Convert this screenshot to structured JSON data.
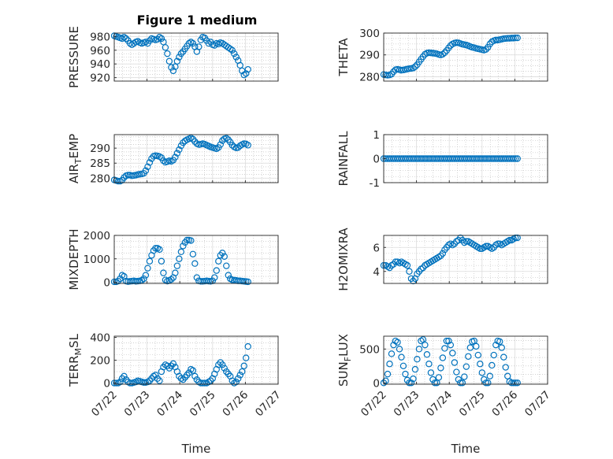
{
  "figure": {
    "title": "Figure 1 medium"
  },
  "colors": {
    "marker": "#0072BD",
    "grid": "#b8b8b8",
    "axis": "#262626"
  },
  "chart_data": [
    {
      "type": "scatter",
      "id": "pressure",
      "ylabel": "PRESSURE",
      "ylabel_sub": null,
      "ylim": [
        915,
        985
      ],
      "yticks": [
        920,
        940,
        960,
        980
      ],
      "xlim": [
        0,
        5
      ],
      "xticks": [
        0,
        1,
        2,
        3,
        4,
        5
      ],
      "xticklabels": [
        "07/22",
        "07/23",
        "07/24",
        "07/25",
        "07/26",
        "07/27"
      ],
      "show_xticklabels": false,
      "xlabel": "",
      "x": [
        0.0,
        0.06,
        0.12,
        0.18,
        0.24,
        0.3,
        0.36,
        0.42,
        0.48,
        0.54,
        0.6,
        0.66,
        0.72,
        0.78,
        0.84,
        0.9,
        0.96,
        1.02,
        1.08,
        1.14,
        1.2,
        1.26,
        1.32,
        1.38,
        1.44,
        1.5,
        1.56,
        1.62,
        1.68,
        1.74,
        1.8,
        1.86,
        1.92,
        1.98,
        2.04,
        2.1,
        2.16,
        2.22,
        2.28,
        2.34,
        2.4,
        2.46,
        2.52,
        2.58,
        2.64,
        2.7,
        2.76,
        2.82,
        2.88,
        2.94,
        3.0,
        3.06,
        3.12,
        3.18,
        3.24,
        3.3,
        3.36,
        3.42,
        3.48,
        3.54,
        3.6,
        3.66,
        3.72,
        3.78,
        3.84,
        3.9,
        3.96,
        4.02,
        4.08
      ],
      "y": [
        981,
        980,
        979,
        978,
        977,
        979,
        977,
        974,
        970,
        968,
        970,
        972,
        973,
        971,
        970,
        971,
        972,
        970,
        974,
        977,
        976,
        975,
        976,
        979,
        977,
        972,
        964,
        955,
        944,
        935,
        930,
        936,
        944,
        950,
        955,
        958,
        962,
        966,
        970,
        972,
        970,
        965,
        958,
        965,
        975,
        979,
        978,
        974,
        970,
        972,
        968,
        967,
        970,
        969,
        971,
        970,
        968,
        966,
        964,
        962,
        960,
        955,
        950,
        945,
        938,
        930,
        924,
        926,
        932
      ]
    },
    {
      "type": "scatter",
      "id": "theta",
      "ylabel": "THETA",
      "ylabel_sub": null,
      "ylim": [
        278,
        300
      ],
      "yticks": [
        280,
        290,
        300
      ],
      "xlim": [
        0,
        5
      ],
      "xticks": [
        0,
        1,
        2,
        3,
        4,
        5
      ],
      "xticklabels": [
        "07/22",
        "07/23",
        "07/24",
        "07/25",
        "07/26",
        "07/27"
      ],
      "show_xticklabels": false,
      "xlabel": "",
      "x": [
        0.0,
        0.06,
        0.12,
        0.18,
        0.24,
        0.3,
        0.36,
        0.42,
        0.48,
        0.54,
        0.6,
        0.66,
        0.72,
        0.78,
        0.84,
        0.9,
        0.96,
        1.02,
        1.08,
        1.14,
        1.2,
        1.26,
        1.32,
        1.38,
        1.44,
        1.5,
        1.56,
        1.62,
        1.68,
        1.74,
        1.8,
        1.86,
        1.92,
        1.98,
        2.04,
        2.1,
        2.16,
        2.22,
        2.28,
        2.34,
        2.4,
        2.46,
        2.52,
        2.58,
        2.64,
        2.7,
        2.76,
        2.82,
        2.88,
        2.94,
        3.0,
        3.06,
        3.12,
        3.18,
        3.24,
        3.3,
        3.36,
        3.42,
        3.48,
        3.54,
        3.6,
        3.66,
        3.72,
        3.78,
        3.84,
        3.9,
        3.96,
        4.02,
        4.08
      ],
      "y": [
        281,
        280.8,
        280.7,
        280.8,
        281.2,
        282.3,
        283.2,
        283.4,
        283.2,
        283.0,
        283.1,
        283.3,
        283.5,
        283.7,
        283.8,
        284.0,
        284.6,
        285.5,
        286.8,
        288.0,
        289.2,
        290.3,
        290.8,
        291.0,
        290.9,
        290.8,
        290.7,
        290.5,
        290.2,
        290.0,
        290.3,
        291.0,
        292.0,
        293.2,
        294.3,
        295.0,
        295.4,
        295.6,
        295.5,
        295.2,
        294.9,
        294.7,
        294.5,
        294.2,
        293.8,
        293.5,
        293.3,
        293.0,
        292.8,
        292.6,
        292.4,
        292.2,
        292.5,
        293.5,
        295.0,
        296.0,
        296.5,
        296.8,
        296.8,
        297.0,
        297.2,
        297.4,
        297.5,
        297.6,
        297.6,
        297.7,
        297.7,
        297.8,
        297.8
      ]
    },
    {
      "type": "scatter",
      "id": "air_temp",
      "ylabel": "AIR",
      "ylabel_sub": "T",
      "ylabel_tail": "EMP",
      "ylim": [
        278.5,
        294.5
      ],
      "yticks": [
        280,
        285,
        290
      ],
      "xlim": [
        0,
        5
      ],
      "xticks": [
        0,
        1,
        2,
        3,
        4,
        5
      ],
      "xticklabels": [
        "07/22",
        "07/23",
        "07/24",
        "07/25",
        "07/26",
        "07/27"
      ],
      "show_xticklabels": false,
      "xlabel": "",
      "x": [
        0.0,
        0.06,
        0.12,
        0.18,
        0.24,
        0.3,
        0.36,
        0.42,
        0.48,
        0.54,
        0.6,
        0.66,
        0.72,
        0.78,
        0.84,
        0.9,
        0.96,
        1.02,
        1.08,
        1.14,
        1.2,
        1.26,
        1.32,
        1.38,
        1.44,
        1.5,
        1.56,
        1.62,
        1.68,
        1.74,
        1.8,
        1.86,
        1.92,
        1.98,
        2.04,
        2.1,
        2.16,
        2.22,
        2.28,
        2.34,
        2.4,
        2.46,
        2.52,
        2.58,
        2.64,
        2.7,
        2.76,
        2.82,
        2.88,
        2.94,
        3.0,
        3.06,
        3.12,
        3.18,
        3.24,
        3.3,
        3.36,
        3.42,
        3.48,
        3.54,
        3.6,
        3.66,
        3.72,
        3.78,
        3.84,
        3.9,
        3.96,
        4.02,
        4.08
      ],
      "y": [
        279.4,
        279.2,
        279.0,
        279.0,
        279.3,
        280.2,
        280.8,
        281.0,
        281.0,
        280.8,
        280.9,
        281.0,
        281.2,
        281.3,
        281.4,
        281.6,
        282.5,
        283.8,
        285.2,
        286.5,
        287.3,
        287.5,
        287.4,
        287.2,
        286.8,
        285.8,
        285.3,
        285.5,
        285.8,
        285.6,
        286.0,
        287.0,
        288.3,
        289.5,
        290.8,
        291.8,
        292.4,
        292.8,
        293.1,
        293.4,
        293.0,
        292.2,
        291.5,
        291.2,
        291.3,
        291.5,
        291.3,
        291.0,
        290.7,
        290.4,
        290.2,
        290.0,
        289.8,
        290.2,
        291.2,
        292.5,
        293.1,
        293.3,
        292.8,
        292.0,
        291.0,
        290.4,
        290.1,
        290.2,
        290.8,
        291.2,
        291.5,
        291.4,
        291.0
      ]
    },
    {
      "type": "scatter",
      "id": "rainfall",
      "ylabel": "RAINFALL",
      "ylabel_sub": null,
      "ylim": [
        -1,
        1
      ],
      "yticks": [
        -1,
        0,
        1
      ],
      "xlim": [
        0,
        5
      ],
      "xticks": [
        0,
        1,
        2,
        3,
        4,
        5
      ],
      "xticklabels": [
        "07/22",
        "07/23",
        "07/24",
        "07/25",
        "07/26",
        "07/27"
      ],
      "show_xticklabels": false,
      "xlabel": "",
      "x": [
        0.0,
        0.06,
        0.12,
        0.18,
        0.24,
        0.3,
        0.36,
        0.42,
        0.48,
        0.54,
        0.6,
        0.66,
        0.72,
        0.78,
        0.84,
        0.9,
        0.96,
        1.02,
        1.08,
        1.14,
        1.2,
        1.26,
        1.32,
        1.38,
        1.44,
        1.5,
        1.56,
        1.62,
        1.68,
        1.74,
        1.8,
        1.86,
        1.92,
        1.98,
        2.04,
        2.1,
        2.16,
        2.22,
        2.28,
        2.34,
        2.4,
        2.46,
        2.52,
        2.58,
        2.64,
        2.7,
        2.76,
        2.82,
        2.88,
        2.94,
        3.0,
        3.06,
        3.12,
        3.18,
        3.24,
        3.3,
        3.36,
        3.42,
        3.48,
        3.54,
        3.6,
        3.66,
        3.72,
        3.78,
        3.84,
        3.9,
        3.96,
        4.02,
        4.08
      ],
      "y": [
        0,
        0,
        0,
        0,
        0,
        0,
        0,
        0,
        0,
        0,
        0,
        0,
        0,
        0,
        0,
        0,
        0,
        0,
        0,
        0,
        0,
        0,
        0,
        0,
        0,
        0,
        0,
        0,
        0,
        0,
        0,
        0,
        0,
        0,
        0,
        0,
        0,
        0,
        0,
        0,
        0,
        0,
        0,
        0,
        0,
        0,
        0,
        0,
        0,
        0,
        0,
        0,
        0,
        0,
        0,
        0,
        0,
        0,
        0,
        0,
        0,
        0,
        0,
        0,
        0,
        0,
        0,
        0,
        0
      ]
    },
    {
      "type": "scatter",
      "id": "mixdepth",
      "ylabel": "MIXDEPTH",
      "ylabel_sub": null,
      "ylim": [
        -50,
        2000
      ],
      "yticks": [
        0,
        1000,
        2000
      ],
      "xlim": [
        0,
        5
      ],
      "xticks": [
        0,
        1,
        2,
        3,
        4,
        5
      ],
      "xticklabels": [
        "07/22",
        "07/23",
        "07/24",
        "07/25",
        "07/26",
        "07/27"
      ],
      "show_xticklabels": false,
      "xlabel": "",
      "x": [
        0.0,
        0.06,
        0.12,
        0.18,
        0.24,
        0.3,
        0.36,
        0.42,
        0.48,
        0.54,
        0.6,
        0.66,
        0.72,
        0.78,
        0.84,
        0.9,
        0.96,
        1.02,
        1.08,
        1.14,
        1.2,
        1.26,
        1.32,
        1.38,
        1.44,
        1.5,
        1.56,
        1.62,
        1.68,
        1.74,
        1.8,
        1.86,
        1.92,
        1.98,
        2.04,
        2.1,
        2.16,
        2.22,
        2.28,
        2.34,
        2.4,
        2.46,
        2.52,
        2.58,
        2.64,
        2.7,
        2.76,
        2.82,
        2.88,
        2.94,
        3.0,
        3.06,
        3.12,
        3.18,
        3.24,
        3.3,
        3.36,
        3.42,
        3.48,
        3.54,
        3.6,
        3.66,
        3.72,
        3.78,
        3.84,
        3.9,
        3.96,
        4.02,
        4.08
      ],
      "y": [
        20,
        20,
        50,
        150,
        300,
        250,
        50,
        30,
        40,
        50,
        60,
        40,
        50,
        60,
        80,
        150,
        300,
        600,
        900,
        1150,
        1350,
        1450,
        1450,
        1400,
        900,
        400,
        100,
        50,
        80,
        120,
        200,
        400,
        700,
        1000,
        1300,
        1550,
        1700,
        1800,
        1800,
        1780,
        1200,
        800,
        200,
        60,
        40,
        40,
        50,
        60,
        50,
        40,
        60,
        200,
        500,
        900,
        1150,
        1250,
        1100,
        700,
        300,
        150,
        100,
        90,
        80,
        60,
        60,
        50,
        40,
        30,
        20
      ]
    },
    {
      "type": "scatter",
      "id": "h2omixra",
      "ylabel": "H2OMIXRA",
      "ylabel_sub": null,
      "ylim": [
        3,
        7
      ],
      "yticks": [
        4,
        6
      ],
      "xlim": [
        0,
        5
      ],
      "xticks": [
        0,
        1,
        2,
        3,
        4,
        5
      ],
      "xticklabels": [
        "07/22",
        "07/23",
        "07/24",
        "07/25",
        "07/26",
        "07/27"
      ],
      "show_xticklabels": false,
      "xlabel": "",
      "x": [
        0.0,
        0.06,
        0.12,
        0.18,
        0.24,
        0.3,
        0.36,
        0.42,
        0.48,
        0.54,
        0.6,
        0.66,
        0.72,
        0.78,
        0.84,
        0.9,
        0.96,
        1.02,
        1.08,
        1.14,
        1.2,
        1.26,
        1.32,
        1.38,
        1.44,
        1.5,
        1.56,
        1.62,
        1.68,
        1.74,
        1.8,
        1.86,
        1.92,
        1.98,
        2.04,
        2.1,
        2.16,
        2.22,
        2.28,
        2.34,
        2.4,
        2.46,
        2.52,
        2.58,
        2.64,
        2.7,
        2.76,
        2.82,
        2.88,
        2.94,
        3.0,
        3.06,
        3.12,
        3.18,
        3.24,
        3.3,
        3.36,
        3.42,
        3.48,
        3.54,
        3.6,
        3.66,
        3.72,
        3.78,
        3.84,
        3.9,
        3.96,
        4.02,
        4.08
      ],
      "y": [
        4.5,
        4.5,
        4.4,
        4.3,
        4.5,
        4.6,
        4.8,
        4.8,
        4.7,
        4.8,
        4.7,
        4.6,
        4.5,
        4.0,
        3.4,
        3.2,
        3.4,
        3.8,
        4.0,
        4.2,
        4.3,
        4.5,
        4.6,
        4.7,
        4.8,
        4.9,
        5.0,
        5.1,
        5.2,
        5.3,
        5.5,
        5.8,
        6.0,
        6.2,
        6.3,
        6.2,
        6.3,
        6.5,
        6.6,
        6.8,
        6.6,
        6.4,
        6.5,
        6.5,
        6.4,
        6.3,
        6.2,
        6.1,
        6.0,
        5.9,
        5.9,
        6.0,
        6.1,
        6.1,
        6.0,
        5.9,
        6.0,
        6.2,
        6.3,
        6.3,
        6.2,
        6.3,
        6.4,
        6.5,
        6.6,
        6.6,
        6.7,
        6.8,
        6.8
      ]
    },
    {
      "type": "scatter",
      "id": "terr_msl",
      "ylabel": "TERR",
      "ylabel_sub": "M",
      "ylabel_tail": "SL",
      "ylim": [
        -10,
        410
      ],
      "yticks": [
        0,
        200,
        400
      ],
      "xlim": [
        0,
        5
      ],
      "xticks": [
        0,
        1,
        2,
        3,
        4,
        5
      ],
      "xticklabels": [
        "07/22",
        "07/23",
        "07/24",
        "07/25",
        "07/26",
        "07/27"
      ],
      "show_xticklabels": true,
      "xlabel": "Time",
      "x": [
        0.0,
        0.06,
        0.12,
        0.18,
        0.24,
        0.3,
        0.36,
        0.42,
        0.48,
        0.54,
        0.6,
        0.66,
        0.72,
        0.78,
        0.84,
        0.9,
        0.96,
        1.02,
        1.08,
        1.14,
        1.2,
        1.26,
        1.32,
        1.38,
        1.44,
        1.5,
        1.56,
        1.62,
        1.68,
        1.74,
        1.8,
        1.86,
        1.92,
        1.98,
        2.04,
        2.1,
        2.16,
        2.22,
        2.28,
        2.34,
        2.4,
        2.46,
        2.52,
        2.58,
        2.64,
        2.7,
        2.76,
        2.82,
        2.88,
        2.94,
        3.0,
        3.06,
        3.12,
        3.18,
        3.24,
        3.3,
        3.36,
        3.42,
        3.48,
        3.54,
        3.6,
        3.66,
        3.72,
        3.78,
        3.84,
        3.9,
        3.96,
        4.02,
        4.08
      ],
      "y": [
        0,
        0,
        0,
        10,
        40,
        60,
        30,
        10,
        0,
        0,
        5,
        10,
        20,
        15,
        10,
        5,
        5,
        10,
        20,
        40,
        60,
        70,
        40,
        20,
        100,
        140,
        160,
        150,
        130,
        150,
        170,
        140,
        100,
        60,
        40,
        30,
        50,
        70,
        90,
        120,
        110,
        60,
        30,
        10,
        0,
        0,
        0,
        0,
        10,
        20,
        40,
        80,
        120,
        160,
        180,
        160,
        130,
        100,
        80,
        60,
        20,
        0,
        10,
        40,
        70,
        100,
        150,
        220,
        320
      ]
    },
    {
      "type": "scatter",
      "id": "sun_flux",
      "ylabel": "SUN",
      "ylabel_sub": "F",
      "ylabel_tail": "LUX",
      "ylim": [
        -20,
        690
      ],
      "yticks": [
        0,
        500
      ],
      "xlim": [
        0,
        5
      ],
      "xticks": [
        0,
        1,
        2,
        3,
        4,
        5
      ],
      "xticklabels": [
        "07/22",
        "07/23",
        "07/24",
        "07/25",
        "07/26",
        "07/27"
      ],
      "show_xticklabels": true,
      "xlabel": "Time",
      "x": [
        0.0,
        0.06,
        0.12,
        0.18,
        0.24,
        0.3,
        0.36,
        0.42,
        0.48,
        0.54,
        0.6,
        0.66,
        0.72,
        0.78,
        0.84,
        0.9,
        0.96,
        1.02,
        1.08,
        1.14,
        1.2,
        1.26,
        1.32,
        1.38,
        1.44,
        1.5,
        1.56,
        1.62,
        1.68,
        1.74,
        1.8,
        1.86,
        1.92,
        1.98,
        2.04,
        2.1,
        2.16,
        2.22,
        2.28,
        2.34,
        2.4,
        2.46,
        2.52,
        2.58,
        2.64,
        2.7,
        2.76,
        2.82,
        2.88,
        2.94,
        3.0,
        3.06,
        3.12,
        3.18,
        3.24,
        3.3,
        3.36,
        3.42,
        3.48,
        3.54,
        3.6,
        3.66,
        3.72,
        3.78,
        3.84,
        3.9,
        3.96,
        4.02,
        4.08
      ],
      "y": [
        0,
        30,
        130,
        280,
        430,
        560,
        620,
        600,
        500,
        380,
        250,
        130,
        40,
        0,
        0,
        60,
        200,
        350,
        500,
        620,
        640,
        560,
        420,
        280,
        150,
        50,
        0,
        0,
        80,
        220,
        370,
        510,
        620,
        620,
        560,
        440,
        300,
        160,
        50,
        0,
        0,
        90,
        240,
        390,
        520,
        610,
        620,
        540,
        410,
        280,
        150,
        50,
        0,
        0,
        100,
        260,
        410,
        560,
        620,
        610,
        520,
        380,
        230,
        100,
        20,
        0,
        0,
        0,
        0
      ]
    }
  ]
}
